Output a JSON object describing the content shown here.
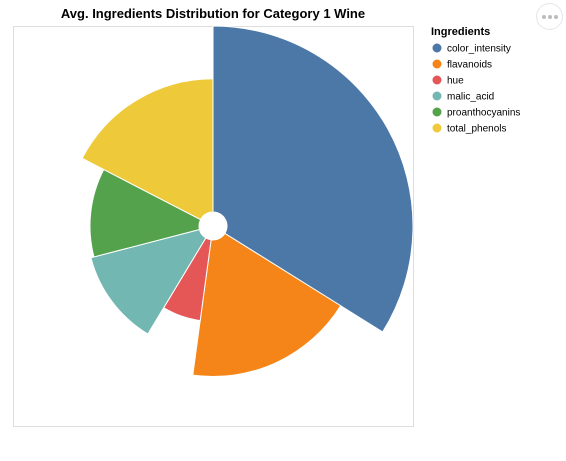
{
  "chart_data": {
    "type": "radial",
    "title": "Avg. Ingredients Distribution for Category 1 Wine",
    "legend": {
      "title": "Ingredients",
      "placement": "right"
    },
    "theta_field": "ingredient",
    "categories": [
      "color_intensity",
      "flavanoids",
      "hue",
      "malic_acid",
      "proanthocyanins",
      "total_phenols"
    ],
    "values": [
      5.53,
      2.98,
      1.06,
      2.01,
      1.9,
      2.84
    ],
    "colors": [
      "#4c78a8",
      "#f58518",
      "#e45756",
      "#72b7b2",
      "#54a24b",
      "#eeca3b"
    ]
  },
  "actions": {
    "icon": "more-actions-icon"
  }
}
